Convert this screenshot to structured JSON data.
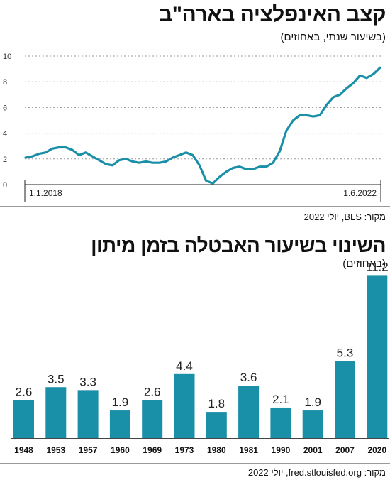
{
  "chart_data": [
    {
      "type": "line",
      "title": "קצב האינפלציה בארה\"ב",
      "subtitle": "(בשיעור שנתי, באחוזים)",
      "source": "מקור: BLS, יולי 2022",
      "color": "#1a8fa8",
      "ylim": [
        0,
        10
      ],
      "yticks": [
        "0",
        "2",
        "4",
        "6",
        "8",
        "10"
      ],
      "grid": true,
      "x_start_label": "1.1.2018",
      "x_end_label": "1.6.2022",
      "values": [
        2.1,
        2.2,
        2.4,
        2.5,
        2.8,
        2.9,
        2.9,
        2.7,
        2.3,
        2.5,
        2.2,
        1.9,
        1.6,
        1.5,
        1.9,
        2.0,
        1.8,
        1.7,
        1.8,
        1.7,
        1.7,
        1.8,
        2.1,
        2.3,
        2.5,
        2.3,
        1.5,
        0.3,
        0.1,
        0.6,
        1.0,
        1.3,
        1.4,
        1.2,
        1.2,
        1.4,
        1.4,
        1.7,
        2.6,
        4.2,
        5.0,
        5.4,
        5.4,
        5.3,
        5.4,
        6.2,
        6.8,
        7.0,
        7.5,
        7.9,
        8.5,
        8.3,
        8.6,
        9.1
      ]
    },
    {
      "type": "bar",
      "title": "השינוי בשיעור האבטלה בזמן מיתון",
      "subtitle": "(באחוזים)",
      "source": "מקור: fred.stlouisfed.org, יולי 2022",
      "color": "#1a8fa8",
      "categories": [
        "1948",
        "1953",
        "1957",
        "1960",
        "1969",
        "1973",
        "1980",
        "1981",
        "1990",
        "2001",
        "2007",
        "2020"
      ],
      "values": [
        2.6,
        3.5,
        3.3,
        1.9,
        2.6,
        4.4,
        1.8,
        3.6,
        2.1,
        1.9,
        5.3,
        11.2
      ],
      "value_labels": [
        "2.6",
        "3.5",
        "3.3",
        "1.9",
        "2.6",
        "4.4",
        "1.8",
        "3.6",
        "2.1",
        "1.9",
        "5.3",
        "11.2"
      ]
    }
  ]
}
